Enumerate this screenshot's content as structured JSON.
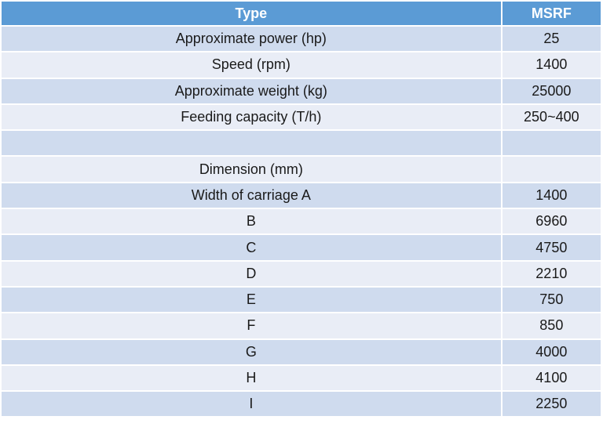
{
  "header": {
    "type": "Type",
    "model": "MSRF"
  },
  "rows": [
    {
      "label": "Approximate power (hp)",
      "value": "25"
    },
    {
      "label": "Speed (rpm)",
      "value": "1400"
    },
    {
      "label": "Approximate weight (kg)",
      "value": "25000"
    },
    {
      "label": "Feeding capacity (T/h)",
      "value": "250~400"
    },
    {
      "label": "",
      "value": ""
    },
    {
      "label": "Dimension (mm)",
      "value": ""
    },
    {
      "label": "Width of carriage A",
      "value": "1400"
    },
    {
      "label": "B",
      "value": "6960"
    },
    {
      "label": "C",
      "value": "4750"
    },
    {
      "label": "D",
      "value": "2210"
    },
    {
      "label": "E",
      "value": "750"
    },
    {
      "label": "F",
      "value": "850"
    },
    {
      "label": "G",
      "value": "4000"
    },
    {
      "label": "H",
      "value": "4100"
    },
    {
      "label": "I",
      "value": "2250"
    }
  ],
  "colors": {
    "header": "#5B9BD5",
    "row_dark": "#CFDBEE",
    "row_light": "#E9EDF6"
  }
}
